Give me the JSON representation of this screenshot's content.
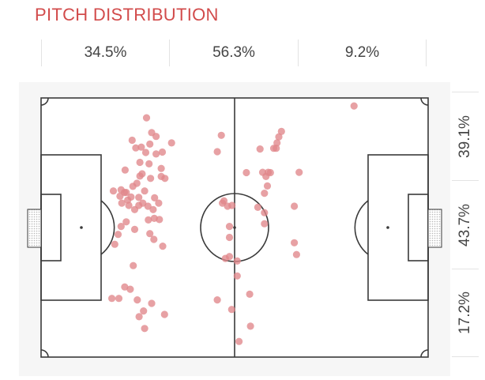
{
  "title": "PITCH DISTRIBUTION",
  "chart_data": {
    "type": "scatter",
    "title": "PITCH DISTRIBUTION",
    "pitch": {
      "length": 105,
      "width": 68
    },
    "thirds_horizontal": [
      "34.5%",
      "56.3%",
      "9.2%"
    ],
    "thirds_vertical": [
      "39.1%",
      "43.7%",
      "17.2%"
    ],
    "marker_color": "#e0868a",
    "points": [
      {
        "x": 28.6,
        "y": 5.2
      },
      {
        "x": 24.7,
        "y": 11.1
      },
      {
        "x": 25.7,
        "y": 13.1
      },
      {
        "x": 27.2,
        "y": 12.9
      },
      {
        "x": 35.4,
        "y": 11.8
      },
      {
        "x": 30.0,
        "y": 9.1
      },
      {
        "x": 31.2,
        "y": 10.1
      },
      {
        "x": 29.5,
        "y": 12.1
      },
      {
        "x": 28.4,
        "y": 14.3
      },
      {
        "x": 26.8,
        "y": 16.9
      },
      {
        "x": 31.2,
        "y": 14.7
      },
      {
        "x": 22.8,
        "y": 18.9
      },
      {
        "x": 19.6,
        "y": 24.4
      },
      {
        "x": 22.6,
        "y": 24.8
      },
      {
        "x": 24.9,
        "y": 23.2
      },
      {
        "x": 28.1,
        "y": 24.4
      },
      {
        "x": 27.4,
        "y": 19.9
      },
      {
        "x": 29.3,
        "y": 17.3
      },
      {
        "x": 29.7,
        "y": 21.1
      },
      {
        "x": 26.0,
        "y": 22.4
      },
      {
        "x": 24.4,
        "y": 26.0
      },
      {
        "x": 23.5,
        "y": 26.8
      },
      {
        "x": 21.9,
        "y": 27.6
      },
      {
        "x": 23.8,
        "y": 28.2
      },
      {
        "x": 25.4,
        "y": 29.3
      },
      {
        "x": 26.5,
        "y": 28.2
      },
      {
        "x": 26.5,
        "y": 26.1
      },
      {
        "x": 27.6,
        "y": 27.6
      },
      {
        "x": 29.0,
        "y": 28.4
      },
      {
        "x": 30.4,
        "y": 29.3
      },
      {
        "x": 31.9,
        "y": 27.6
      },
      {
        "x": 30.8,
        "y": 26.2
      },
      {
        "x": 29.1,
        "y": 32.0
      },
      {
        "x": 29.5,
        "y": 35.6
      },
      {
        "x": 30.7,
        "y": 31.6
      },
      {
        "x": 32.1,
        "y": 31.9
      },
      {
        "x": 32.6,
        "y": 20.6
      },
      {
        "x": 32.6,
        "y": 18.5
      },
      {
        "x": 33.6,
        "y": 21.1
      },
      {
        "x": 32.9,
        "y": 14.2
      },
      {
        "x": 26.8,
        "y": 20.5
      },
      {
        "x": 23.1,
        "y": 24.8
      },
      {
        "x": 21.7,
        "y": 24.1
      },
      {
        "x": 21.4,
        "y": 25.8
      },
      {
        "x": 23.1,
        "y": 32.5
      },
      {
        "x": 25.4,
        "y": 34.5
      },
      {
        "x": 30.6,
        "y": 37.1
      },
      {
        "x": 33.0,
        "y": 38.9
      },
      {
        "x": 20.9,
        "y": 35.8
      },
      {
        "x": 21.7,
        "y": 33.7
      },
      {
        "x": 20.0,
        "y": 38.4
      },
      {
        "x": 25.0,
        "y": 44.0
      },
      {
        "x": 22.7,
        "y": 49.6
      },
      {
        "x": 24.2,
        "y": 50.2
      },
      {
        "x": 19.2,
        "y": 52.6
      },
      {
        "x": 21.1,
        "y": 52.6
      },
      {
        "x": 26.1,
        "y": 53.0
      },
      {
        "x": 27.8,
        "y": 55.9
      },
      {
        "x": 26.6,
        "y": 57.4
      },
      {
        "x": 28.1,
        "y": 60.5
      },
      {
        "x": 30.0,
        "y": 53.9
      },
      {
        "x": 33.5,
        "y": 56.8
      },
      {
        "x": 47.8,
        "y": 14.1
      },
      {
        "x": 48.9,
        "y": 9.8
      },
      {
        "x": 49.6,
        "y": 27.0
      },
      {
        "x": 49.2,
        "y": 27.6
      },
      {
        "x": 50.6,
        "y": 28.4
      },
      {
        "x": 51.8,
        "y": 28.2
      },
      {
        "x": 51.1,
        "y": 33.7
      },
      {
        "x": 51.1,
        "y": 36.6
      },
      {
        "x": 51.1,
        "y": 41.6
      },
      {
        "x": 53.2,
        "y": 42.8
      },
      {
        "x": 53.2,
        "y": 46.7
      },
      {
        "x": 50.0,
        "y": 42.1
      },
      {
        "x": 47.8,
        "y": 53.0
      },
      {
        "x": 51.7,
        "y": 55.5
      },
      {
        "x": 56.6,
        "y": 51.5
      },
      {
        "x": 56.8,
        "y": 59.9
      },
      {
        "x": 53.7,
        "y": 63.9
      },
      {
        "x": 59.4,
        "y": 13.4
      },
      {
        "x": 63.1,
        "y": 13.2
      },
      {
        "x": 64.0,
        "y": 11.8
      },
      {
        "x": 64.5,
        "y": 10.2
      },
      {
        "x": 65.2,
        "y": 8.8
      },
      {
        "x": 63.8,
        "y": 13.2
      },
      {
        "x": 61.6,
        "y": 19.5
      },
      {
        "x": 60.1,
        "y": 19.5
      },
      {
        "x": 61.0,
        "y": 20.6
      },
      {
        "x": 62.2,
        "y": 19.6
      },
      {
        "x": 61.4,
        "y": 23.1
      },
      {
        "x": 60.6,
        "y": 25.0
      },
      {
        "x": 58.8,
        "y": 28.7
      },
      {
        "x": 55.7,
        "y": 19.6
      },
      {
        "x": 60.6,
        "y": 30.1
      },
      {
        "x": 60.6,
        "y": 33.0
      },
      {
        "x": 70.0,
        "y": 19.5
      },
      {
        "x": 68.7,
        "y": 28.4
      },
      {
        "x": 68.7,
        "y": 38.0
      },
      {
        "x": 69.3,
        "y": 41.1
      },
      {
        "x": 84.9,
        "y": 2.1
      }
    ]
  }
}
